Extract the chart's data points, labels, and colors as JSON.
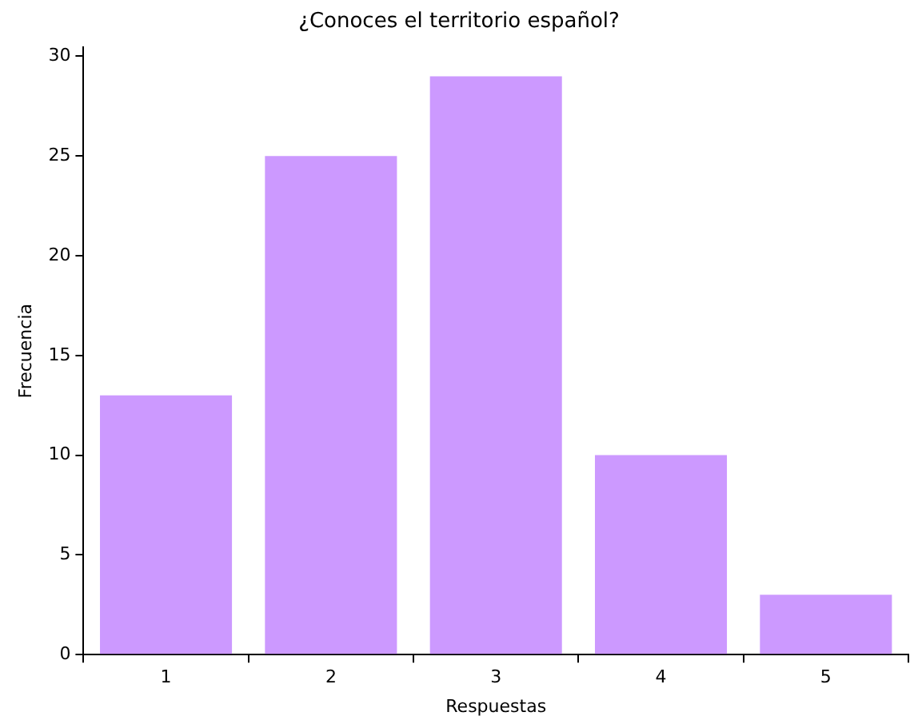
{
  "chart_data": {
    "type": "bar",
    "title": "¿Conoces el territorio español?",
    "xlabel": "Respuestas",
    "ylabel": "Frecuencia",
    "categories": [
      "1",
      "2",
      "3",
      "4",
      "5"
    ],
    "values": [
      13,
      25,
      29,
      10,
      3
    ],
    "color": "#cc99ff",
    "ylim": [
      0,
      30.45
    ],
    "yticks": [
      0,
      5,
      10,
      15,
      20,
      25,
      30
    ],
    "grid": false
  }
}
